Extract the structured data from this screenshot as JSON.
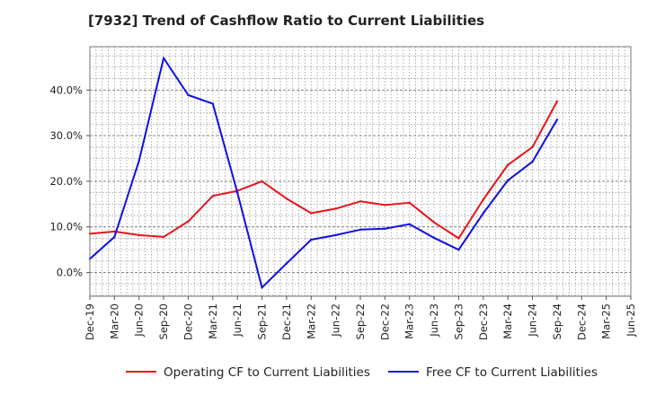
{
  "title": "[7932]  Trend of Cashflow Ratio to Current Liabilities",
  "chart_data": {
    "type": "line",
    "title": "[7932]  Trend of Cashflow Ratio to Current Liabilities",
    "xlabel": "",
    "ylabel": "",
    "categories": [
      "Dec-19",
      "Mar-20",
      "Jun-20",
      "Sep-20",
      "Dec-20",
      "Mar-21",
      "Jun-21",
      "Sep-21",
      "Dec-21",
      "Mar-22",
      "Jun-22",
      "Sep-22",
      "Dec-22",
      "Mar-23",
      "Jun-23",
      "Sep-23",
      "Dec-23",
      "Mar-24",
      "Jun-24",
      "Sep-24",
      "Dec-24",
      "Mar-25"
    ],
    "x_tick_labels": [
      "Dec-19",
      "Mar-20",
      "Jun-20",
      "Sep-20",
      "Dec-20",
      "Mar-21",
      "Jun-21",
      "Sep-21",
      "Dec-21",
      "Mar-22",
      "Jun-22",
      "Sep-22",
      "Dec-22",
      "Mar-23",
      "Jun-23",
      "Sep-23",
      "Dec-23",
      "Mar-24",
      "Jun-24",
      "Sep-24",
      "Dec-24",
      "Mar-25",
      "Jun-25"
    ],
    "y_ticks": [
      0,
      10,
      20,
      30,
      40
    ],
    "y_tick_labels": [
      "0.0%",
      "10.0%",
      "20.0%",
      "30.0%",
      "40.0%"
    ],
    "ylim": [
      -5.2,
      49.5
    ],
    "grid": true,
    "legend_position": "bottom",
    "series": [
      {
        "name": "Operating CF to Current Liabilities",
        "color": "#e8141c",
        "values": [
          8.5,
          9.0,
          8.2,
          7.8,
          11.2,
          16.8,
          17.9,
          20.0,
          16.2,
          13.0,
          14.0,
          15.6,
          14.8,
          15.3,
          11.0,
          7.5,
          16.0,
          23.6,
          27.5,
          37.5,
          null,
          null
        ]
      },
      {
        "name": "Free CF to Current Liabilities",
        "color": "#1010e0",
        "values": [
          3.0,
          7.8,
          24.5,
          47.0,
          38.9,
          37.0,
          17.5,
          -3.3,
          2.0,
          7.2,
          8.2,
          9.4,
          9.6,
          10.6,
          7.6,
          5.0,
          13.0,
          20.2,
          24.3,
          33.5,
          null,
          null
        ]
      }
    ]
  }
}
